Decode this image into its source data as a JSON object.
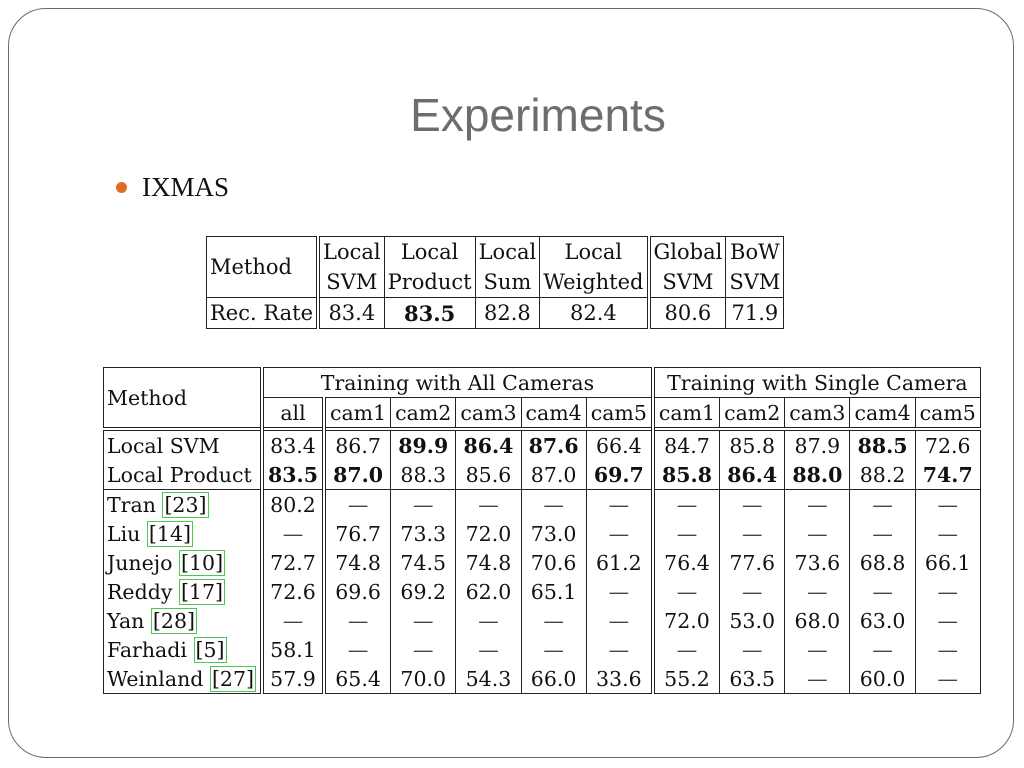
{
  "slide": {
    "title": "Experiments",
    "bullet": "IXMAS",
    "accent_color": "#e06c1f"
  },
  "table1": {
    "method_header": "Method",
    "columns": [
      {
        "line1": "Local",
        "line2": "SVM"
      },
      {
        "line1": "Local",
        "line2": "Product"
      },
      {
        "line1": "Local",
        "line2": "Sum"
      },
      {
        "line1": "Local",
        "line2": "Weighted"
      },
      {
        "line1": "Global",
        "line2": "SVM"
      },
      {
        "line1": "BoW",
        "line2": "SVM"
      }
    ],
    "row_label": "Rec. Rate",
    "values": [
      "83.4",
      "83.5",
      "82.8",
      "82.4",
      "80.6",
      "71.9"
    ],
    "bold_index": 1
  },
  "table2": {
    "method_header": "Method",
    "group_all": "Training with All Cameras",
    "group_single": "Training with Single Camera",
    "subheaders": [
      "all",
      "cam1",
      "cam2",
      "cam3",
      "cam4",
      "cam5",
      "cam1",
      "cam2",
      "cam3",
      "cam4",
      "cam5"
    ],
    "rows": [
      {
        "method": "Local SVM",
        "cite": "",
        "values": [
          "83.4",
          "86.7",
          "89.9",
          "86.4",
          "87.6",
          "66.4",
          "84.7",
          "85.8",
          "87.9",
          "88.5",
          "72.6"
        ],
        "bold": [
          false,
          false,
          true,
          true,
          true,
          false,
          false,
          false,
          false,
          true,
          false
        ]
      },
      {
        "method": "Local Product",
        "cite": "",
        "values": [
          "83.5",
          "87.0",
          "88.3",
          "85.6",
          "87.0",
          "69.7",
          "85.8",
          "86.4",
          "88.0",
          "88.2",
          "74.7"
        ],
        "bold": [
          true,
          true,
          false,
          false,
          false,
          true,
          true,
          true,
          true,
          false,
          true
        ]
      },
      {
        "method": "Tran",
        "cite": "23",
        "values": [
          "80.2",
          "—",
          "—",
          "—",
          "—",
          "—",
          "—",
          "—",
          "—",
          "—",
          "—"
        ],
        "bold": []
      },
      {
        "method": "Liu",
        "cite": "14",
        "values": [
          "—",
          "76.7",
          "73.3",
          "72.0",
          "73.0",
          "—",
          "—",
          "—",
          "—",
          "—",
          "—"
        ],
        "bold": []
      },
      {
        "method": "Junejo",
        "cite": "10",
        "values": [
          "72.7",
          "74.8",
          "74.5",
          "74.8",
          "70.6",
          "61.2",
          "76.4",
          "77.6",
          "73.6",
          "68.8",
          "66.1"
        ],
        "bold": []
      },
      {
        "method": "Reddy",
        "cite": "17",
        "values": [
          "72.6",
          "69.6",
          "69.2",
          "62.0",
          "65.1",
          "—",
          "—",
          "—",
          "—",
          "—",
          "—"
        ],
        "bold": []
      },
      {
        "method": "Yan",
        "cite": "28",
        "values": [
          "—",
          "—",
          "—",
          "—",
          "—",
          "—",
          "72.0",
          "53.0",
          "68.0",
          "63.0",
          "—"
        ],
        "bold": []
      },
      {
        "method": "Farhadi",
        "cite": "5",
        "values": [
          "58.1",
          "—",
          "—",
          "—",
          "—",
          "—",
          "—",
          "—",
          "—",
          "—",
          "—"
        ],
        "bold": []
      },
      {
        "method": "Weinland",
        "cite": "27",
        "values": [
          "57.9",
          "65.4",
          "70.0",
          "54.3",
          "66.0",
          "33.6",
          "55.2",
          "63.5",
          "—",
          "60.0",
          "—"
        ],
        "bold": []
      }
    ]
  }
}
